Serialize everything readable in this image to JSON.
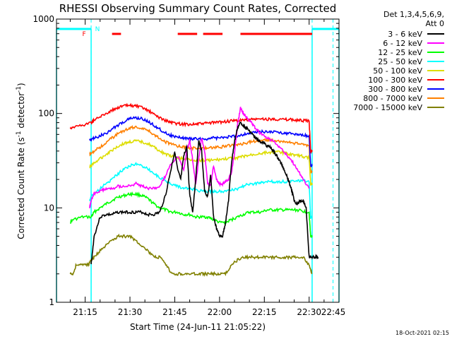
{
  "chart_data": {
    "type": "line",
    "title": "RHESSI Observing Summary Count Rates, Corrected",
    "xlabel": "Start Time (24-Jun-11 21:05:22)",
    "ylabel_main": "Corrected Count Rate (s",
    "ylabel_sup1": "-1",
    "ylabel_mid": " detector",
    "ylabel_sup2": "-1",
    "ylabel_end": ")",
    "y_scale": "log",
    "ylim": [
      1,
      1000
    ],
    "xlim_minutes": [
      5.4,
      100
    ],
    "y_ticks": [
      {
        "label": "1",
        "value": 1
      },
      {
        "label": "10",
        "value": 10
      },
      {
        "label": "100",
        "value": 100
      },
      {
        "label": "1000",
        "value": 1000
      }
    ],
    "x_ticks": [
      {
        "label": "21:15",
        "minute": 15
      },
      {
        "label": "21:30",
        "minute": 30
      },
      {
        "label": "21:45",
        "minute": 45
      },
      {
        "label": "22:00",
        "minute": 60
      },
      {
        "label": "22:15",
        "minute": 75
      },
      {
        "label": "22:30",
        "minute": 90
      },
      {
        "label": "22:45",
        "minute": 105
      }
    ],
    "legend_header": [
      "Det 1,3,4,5,6,9,",
      "Att 0"
    ],
    "legend_placement": "outside-right",
    "series": [
      {
        "name": "3 - 6 keV",
        "color": "#000000",
        "x": [
          17,
          18,
          20,
          22,
          24,
          26,
          28,
          30,
          32,
          34,
          36,
          38,
          40,
          42,
          44,
          45,
          46,
          47,
          48,
          49,
          50,
          51,
          52,
          53,
          54,
          55,
          56,
          57,
          58,
          59,
          60,
          61,
          62,
          63,
          64,
          65,
          66,
          67,
          68,
          69,
          70,
          71,
          72,
          73,
          74,
          75,
          76,
          77,
          78,
          79,
          80,
          81,
          82,
          83,
          84,
          85,
          86,
          87,
          88,
          89,
          90,
          91,
          92,
          93
        ],
        "y": [
          2.5,
          5,
          8,
          8.5,
          8.5,
          9,
          9,
          9,
          9,
          9,
          8.5,
          8.5,
          9,
          14,
          28,
          40,
          25,
          20,
          35,
          45,
          14,
          9,
          20,
          52,
          40,
          15,
          13,
          22,
          8,
          6,
          5,
          5,
          7,
          12,
          30,
          50,
          70,
          80,
          75,
          70,
          65,
          60,
          55,
          52,
          50,
          48,
          45,
          44,
          40,
          36,
          32,
          28,
          24,
          20,
          16,
          12,
          11,
          12,
          12,
          10,
          3,
          3,
          3,
          3
        ]
      },
      {
        "name": "6 - 12 keV",
        "color": "#ff00ff",
        "x": [
          16.5,
          17,
          18,
          20,
          22,
          24,
          26,
          28,
          30,
          32,
          34,
          36,
          38,
          40,
          42,
          44,
          46,
          48,
          49,
          50,
          51,
          52,
          53,
          54,
          55,
          56,
          57,
          58,
          59,
          60,
          61,
          62,
          63,
          64,
          65,
          66,
          67,
          68,
          69,
          70,
          71,
          72,
          74,
          76,
          78,
          80,
          82,
          84,
          86,
          88,
          90
        ],
        "y": [
          10,
          12,
          14,
          15,
          16,
          16,
          17,
          17,
          17,
          18,
          17,
          16,
          16,
          17,
          22,
          30,
          35,
          25,
          40,
          52,
          32,
          18,
          32,
          55,
          40,
          18,
          17,
          28,
          20,
          18,
          18,
          19,
          20,
          24,
          38,
          75,
          115,
          100,
          90,
          85,
          78,
          70,
          60,
          55,
          50,
          44,
          38,
          32,
          26,
          20,
          16
        ]
      },
      {
        "name": "12 - 25 keV",
        "color": "#00ff00",
        "x": [
          10,
          11,
          14,
          17,
          18,
          20,
          22,
          24,
          26,
          28,
          30,
          32,
          34,
          36,
          38,
          40,
          42,
          44,
          46,
          48,
          50,
          52,
          54,
          56,
          58,
          60,
          62,
          64,
          66,
          68,
          70,
          72,
          74,
          76,
          78,
          80,
          82,
          84,
          86,
          88,
          90,
          90.5,
          91
        ],
        "y": [
          7,
          7.5,
          8,
          8,
          9,
          10,
          11,
          12,
          13,
          13.5,
          14,
          14,
          13.5,
          12.5,
          11,
          10,
          9.5,
          9,
          9,
          8.5,
          8.5,
          8,
          8,
          8,
          7.5,
          7,
          7,
          7.5,
          8,
          8.5,
          9,
          9,
          9,
          9.5,
          9.5,
          9.5,
          9.5,
          9.5,
          9.5,
          9.2,
          9,
          5,
          5
        ]
      },
      {
        "name": "25 - 50 keV",
        "color": "#00ffff",
        "x": [
          16.5,
          17,
          18,
          20,
          22,
          24,
          26,
          28,
          30,
          32,
          34,
          36,
          38,
          40,
          42,
          44,
          46,
          48,
          50,
          52,
          54,
          56,
          58,
          60,
          62,
          64,
          66,
          68,
          70,
          72,
          74,
          76,
          78,
          80,
          82,
          84,
          86,
          88,
          90,
          90.5,
          91
        ],
        "y": [
          12,
          13,
          14,
          16,
          18,
          20,
          23,
          26,
          28,
          29,
          28,
          26,
          23,
          21,
          19,
          18,
          17,
          16,
          16,
          15.5,
          15,
          15,
          15,
          15,
          15,
          15.5,
          16,
          17,
          18,
          18,
          18.5,
          19,
          19,
          19,
          19,
          19,
          19.5,
          19.5,
          19,
          8,
          8
        ]
      },
      {
        "name": "50 - 100 keV",
        "color": "#dddd00",
        "x": [
          16.5,
          17,
          18,
          20,
          22,
          24,
          26,
          28,
          30,
          32,
          34,
          36,
          38,
          40,
          42,
          44,
          46,
          48,
          50,
          52,
          54,
          56,
          58,
          60,
          62,
          64,
          66,
          68,
          70,
          72,
          74,
          76,
          78,
          80,
          82,
          84,
          86,
          88,
          90,
          90.5,
          91
        ],
        "y": [
          27,
          28,
          30,
          33,
          37,
          41,
          45,
          48,
          50,
          51,
          50,
          48,
          44,
          40,
          37,
          35,
          34,
          33,
          32.5,
          32,
          32,
          32,
          32,
          32.5,
          33,
          33.5,
          34,
          35,
          36,
          37,
          38,
          38.5,
          39,
          39,
          38,
          37,
          36,
          35,
          34,
          18,
          18
        ]
      },
      {
        "name": "100 - 300 keV",
        "color": "#ff0000",
        "x": [
          10,
          11,
          14,
          17,
          18,
          20,
          22,
          24,
          26,
          28,
          30,
          32,
          34,
          36,
          38,
          40,
          42,
          44,
          46,
          48,
          50,
          52,
          54,
          56,
          58,
          60,
          62,
          64,
          66,
          68,
          70,
          72,
          74,
          76,
          78,
          80,
          82,
          84,
          86,
          88,
          90,
          90.5,
          91
        ],
        "y": [
          70,
          72,
          75,
          80,
          85,
          92,
          100,
          108,
          116,
          120,
          122,
          120,
          115,
          108,
          98,
          90,
          84,
          80,
          78,
          77,
          77,
          77,
          78,
          79,
          80,
          81,
          82,
          83,
          84,
          85,
          86,
          87,
          87,
          87,
          87,
          87,
          86,
          86,
          85,
          84,
          83,
          40,
          40
        ]
      },
      {
        "name": "300 - 800 keV",
        "color": "#0000ff",
        "x": [
          16.5,
          17,
          18,
          20,
          22,
          24,
          26,
          28,
          30,
          32,
          34,
          36,
          38,
          40,
          42,
          44,
          46,
          48,
          50,
          52,
          54,
          56,
          58,
          60,
          62,
          64,
          66,
          68,
          70,
          72,
          74,
          76,
          78,
          80,
          82,
          84,
          86,
          88,
          90,
          90.5,
          91
        ],
        "y": [
          52,
          53,
          55,
          58,
          62,
          68,
          75,
          82,
          88,
          90,
          88,
          82,
          75,
          68,
          62,
          58,
          56,
          55,
          54,
          54,
          54,
          54,
          55,
          55,
          56,
          57,
          58,
          60,
          62,
          63,
          64,
          64,
          64,
          63,
          62,
          61,
          60,
          59,
          58,
          28,
          28
        ]
      },
      {
        "name": "800 - 7000 keV",
        "color": "#ff8000",
        "x": [
          16.5,
          17,
          18,
          20,
          22,
          24,
          26,
          28,
          30,
          32,
          34,
          36,
          38,
          40,
          42,
          44,
          46,
          48,
          50,
          52,
          54,
          56,
          58,
          60,
          62,
          64,
          66,
          68,
          70,
          72,
          74,
          76,
          78,
          80,
          82,
          84,
          86,
          88,
          90,
          90.5,
          91
        ],
        "y": [
          37,
          38,
          40,
          44,
          49,
          55,
          61,
          66,
          70,
          72,
          70,
          66,
          60,
          55,
          50,
          47,
          45,
          44,
          43,
          43,
          43,
          43,
          44,
          44,
          45,
          46,
          47,
          48,
          50,
          51,
          52,
          52,
          52,
          51,
          50,
          49,
          48,
          47,
          46,
          24,
          24
        ]
      },
      {
        "name": "7000 - 15000 keV",
        "color": "#808000",
        "x": [
          10,
          11,
          12,
          14,
          16,
          17,
          18,
          20,
          22,
          24,
          26,
          28,
          30,
          32,
          34,
          36,
          38,
          40,
          42,
          44,
          46,
          48,
          50,
          52,
          54,
          56,
          58,
          60,
          62,
          64,
          66,
          68,
          70,
          72,
          74,
          76,
          78,
          80,
          82,
          84,
          86,
          88,
          90,
          91
        ],
        "y": [
          2,
          2,
          2.5,
          2.5,
          2.5,
          2.8,
          3,
          3.5,
          4,
          4.5,
          5,
          5,
          5,
          4.5,
          4,
          3.5,
          3,
          3,
          2.5,
          2,
          2,
          2,
          2,
          2,
          2,
          2,
          2,
          2,
          2,
          2.5,
          2.8,
          3,
          3,
          3,
          3,
          3,
          3,
          3,
          3,
          3,
          3,
          3,
          2.5,
          2
        ]
      }
    ],
    "flags_row_label_f": "F",
    "flags_row_label_n": "N",
    "flag_segments_red": [
      [
        24,
        27
      ],
      [
        46,
        52.5
      ],
      [
        54.5,
        61
      ],
      [
        67,
        91
      ]
    ],
    "night_intervals_cyan": [
      [
        5.4,
        17
      ],
      [
        91,
        100
      ]
    ],
    "dashed_markers": [
      17,
      91,
      98
    ]
  },
  "timestamp": "18-Oct-2021 02:15"
}
